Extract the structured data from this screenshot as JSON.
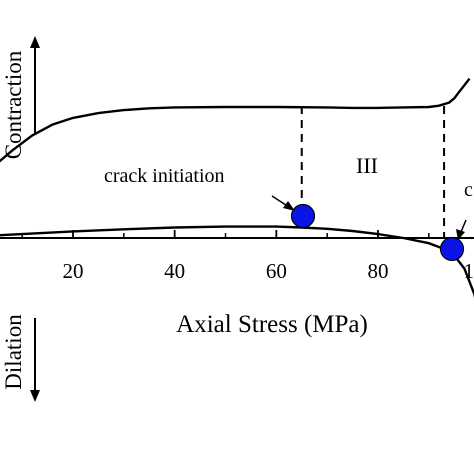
{
  "chart_data": {
    "type": "line",
    "xlabel": "Axial Stress (MPa)",
    "x_ticks": [
      20,
      40,
      60,
      80,
      "1"
    ],
    "xlim": [
      5,
      100
    ],
    "ylim": [
      -30,
      40
    ],
    "direction_labels": {
      "up": "Contraction",
      "down": "Dilation"
    },
    "region_label": "III",
    "annotations": [
      {
        "text": "crack initiation",
        "x": 65,
        "y": 0.6
      },
      {
        "text": "c",
        "x": 95,
        "y": -0.4
      }
    ],
    "series": [
      {
        "x": [
          0,
          5,
          8,
          12,
          16,
          20,
          25,
          30,
          35,
          40,
          50,
          60,
          70,
          75,
          80,
          85,
          90,
          92,
          94,
          95,
          96,
          97,
          98
        ],
        "y": [
          12,
          17,
          20,
          23.5,
          26,
          27.5,
          28.6,
          29.3,
          29.7,
          29.9,
          30,
          30,
          29.9,
          29.8,
          29.8,
          29.9,
          30,
          30.3,
          31,
          32,
          33.5,
          35,
          36.5
        ]
      },
      {
        "x": [
          0,
          10,
          20,
          30,
          40,
          50,
          60,
          65,
          70,
          75,
          80,
          85,
          90,
          93,
          95,
          97,
          99,
          100,
          101
        ],
        "y": [
          0.3,
          0.9,
          1.5,
          2,
          2.4,
          2.6,
          2.6,
          2.4,
          2.1,
          1.6,
          0.9,
          0,
          -1.2,
          -2.5,
          -4,
          -7,
          -13,
          -20,
          -28
        ]
      }
    ],
    "points": [
      {
        "label": "crack initiation",
        "x": 65,
        "y": 0.6,
        "color": "#0a14e6"
      },
      {
        "label": "c",
        "x": 95,
        "y": -0.4,
        "color": "#0a14e6"
      }
    ],
    "vlines": [
      65,
      93
    ]
  }
}
